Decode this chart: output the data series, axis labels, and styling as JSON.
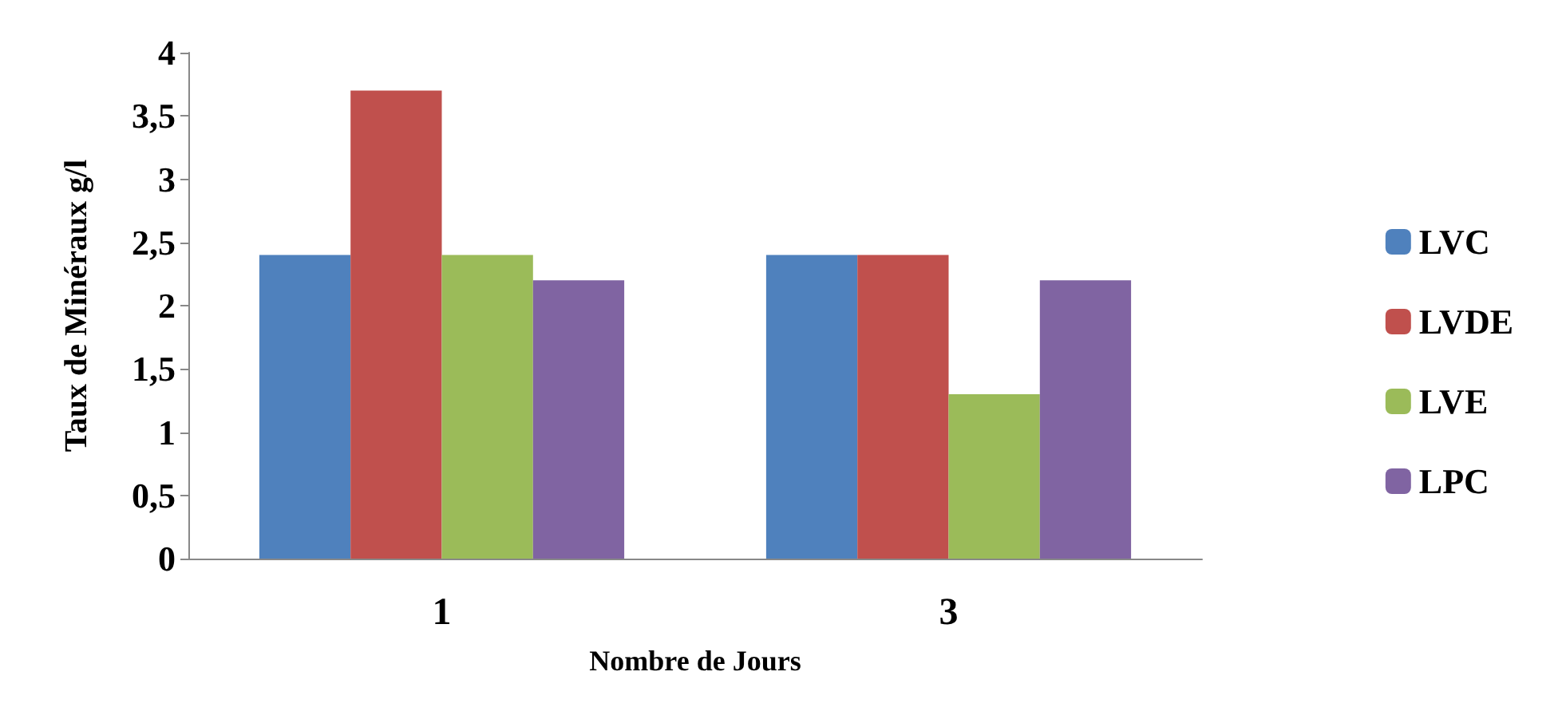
{
  "chart_data": {
    "type": "bar",
    "xlabel": "Nombre de Jours",
    "ylabel": "Taux de Minéraux g/l",
    "categories": [
      "1",
      "3"
    ],
    "series": [
      {
        "name": "LVC",
        "color": "#4f81bd",
        "values": [
          2.4,
          2.4
        ]
      },
      {
        "name": "LVDE",
        "color": "#c0504d",
        "values": [
          3.7,
          2.4
        ]
      },
      {
        "name": "LVE",
        "color": "#9bbb59",
        "values": [
          2.4,
          1.3
        ]
      },
      {
        "name": "LPC",
        "color": "#8064a2",
        "values": [
          2.2,
          2.2
        ]
      }
    ],
    "ylim": [
      0,
      4
    ],
    "yticks": [
      0,
      {
        "value": 0.5,
        "label": "0,5"
      },
      1,
      {
        "value": 1.5,
        "label": "1,5"
      },
      2,
      {
        "value": 2.5,
        "label": "2,5"
      },
      3,
      {
        "value": 3.5,
        "label": "3,5"
      },
      4
    ],
    "grid": false,
    "legend": "right"
  }
}
